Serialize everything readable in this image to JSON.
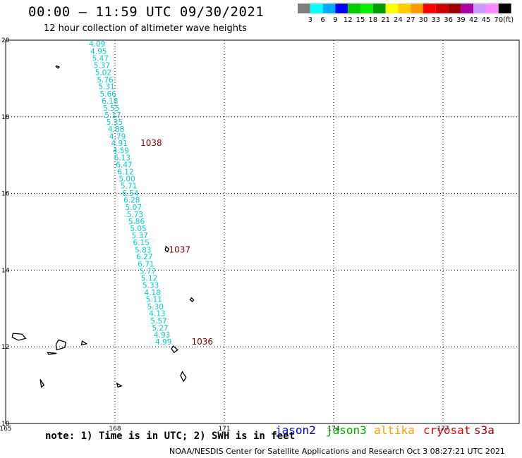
{
  "header": {
    "title": "00:00 – 11:59 UTC 09/30/2021",
    "subtitle": "12 hour collection of altimeter wave heights"
  },
  "colorbar": {
    "unit": "(ft)",
    "colors": [
      "#7f7f7f",
      "#00ffff",
      "#00aaff",
      "#0000ff",
      "#00cc00",
      "#00ee00",
      "#009900",
      "#ffff00",
      "#ffcc00",
      "#ff9900",
      "#ff0000",
      "#cc0000",
      "#990000",
      "#aa00aa",
      "#cc99ff",
      "#ff88ff",
      "#000000"
    ],
    "ticks": [
      "3",
      "6",
      "9",
      "12",
      "15",
      "18",
      "21",
      "24",
      "27",
      "30",
      "33",
      "36",
      "39",
      "42",
      "45",
      "70"
    ]
  },
  "map": {
    "lon_ticks": [
      "165",
      "168",
      "171",
      "174",
      "177"
    ],
    "lat_ticks": [
      "20",
      "18",
      "16",
      "14",
      "12",
      "10"
    ],
    "swh_color": "#00cccc",
    "pressure_color": "#7a0000",
    "swh_points": [
      {
        "lat": 19.83,
        "lon": 167.51,
        "v": "4.09"
      },
      {
        "lat": 19.64,
        "lon": 167.55,
        "v": "4.95"
      },
      {
        "lat": 19.46,
        "lon": 167.6,
        "v": "5.47"
      },
      {
        "lat": 19.27,
        "lon": 167.64,
        "v": "5.37"
      },
      {
        "lat": 19.09,
        "lon": 167.68,
        "v": "5.02"
      },
      {
        "lat": 18.9,
        "lon": 167.73,
        "v": "5.76"
      },
      {
        "lat": 18.72,
        "lon": 167.77,
        "v": "5.31"
      },
      {
        "lat": 18.53,
        "lon": 167.81,
        "v": "5.66"
      },
      {
        "lat": 18.35,
        "lon": 167.86,
        "v": "6.18"
      },
      {
        "lat": 18.16,
        "lon": 167.9,
        "v": "5.55"
      },
      {
        "lat": 17.98,
        "lon": 167.94,
        "v": "5.17"
      },
      {
        "lat": 17.79,
        "lon": 167.99,
        "v": "5.35"
      },
      {
        "lat": 17.61,
        "lon": 168.03,
        "v": "4.88"
      },
      {
        "lat": 17.42,
        "lon": 168.07,
        "v": "4.79"
      },
      {
        "lat": 17.24,
        "lon": 168.12,
        "v": "4.91"
      },
      {
        "lat": 17.05,
        "lon": 168.16,
        "v": "4.59"
      },
      {
        "lat": 16.87,
        "lon": 168.2,
        "v": "6.13"
      },
      {
        "lat": 16.68,
        "lon": 168.25,
        "v": "6.47"
      },
      {
        "lat": 16.5,
        "lon": 168.29,
        "v": "6.12"
      },
      {
        "lat": 16.31,
        "lon": 168.33,
        "v": "5.00"
      },
      {
        "lat": 16.13,
        "lon": 168.38,
        "v": "5.71"
      },
      {
        "lat": 15.94,
        "lon": 168.42,
        "v": "6.54"
      },
      {
        "lat": 15.76,
        "lon": 168.46,
        "v": "6.28"
      },
      {
        "lat": 15.57,
        "lon": 168.51,
        "v": "5.07"
      },
      {
        "lat": 15.39,
        "lon": 168.55,
        "v": "5.73"
      },
      {
        "lat": 15.2,
        "lon": 168.59,
        "v": "5.86"
      },
      {
        "lat": 15.02,
        "lon": 168.64,
        "v": "5.05"
      },
      {
        "lat": 14.83,
        "lon": 168.68,
        "v": "5.37"
      },
      {
        "lat": 14.65,
        "lon": 168.72,
        "v": "6.15"
      },
      {
        "lat": 14.46,
        "lon": 168.77,
        "v": "5.83"
      },
      {
        "lat": 14.28,
        "lon": 168.81,
        "v": "6.27"
      },
      {
        "lat": 14.09,
        "lon": 168.85,
        "v": "6.71"
      },
      {
        "lat": 13.91,
        "lon": 168.9,
        "v": "5.77"
      },
      {
        "lat": 13.72,
        "lon": 168.94,
        "v": "5.12"
      },
      {
        "lat": 13.54,
        "lon": 168.98,
        "v": "5.33"
      },
      {
        "lat": 13.35,
        "lon": 169.03,
        "v": "4.18"
      },
      {
        "lat": 13.17,
        "lon": 169.07,
        "v": "5.11"
      },
      {
        "lat": 12.98,
        "lon": 169.11,
        "v": "5.30"
      },
      {
        "lat": 12.8,
        "lon": 169.16,
        "v": "4.13"
      },
      {
        "lat": 12.61,
        "lon": 169.2,
        "v": "5.57"
      },
      {
        "lat": 12.43,
        "lon": 169.24,
        "v": "5.27"
      },
      {
        "lat": 12.24,
        "lon": 169.29,
        "v": "4.93"
      },
      {
        "lat": 12.06,
        "lon": 169.33,
        "v": "4.99"
      }
    ],
    "pressure_labels": [
      {
        "lat": 17.24,
        "lon": 168.7,
        "v": "1038"
      },
      {
        "lat": 14.46,
        "lon": 169.48,
        "v": "1037"
      },
      {
        "lat": 12.06,
        "lon": 170.1,
        "v": "1036"
      }
    ],
    "islands": [
      [
        [
          19.33,
          166.4
        ],
        [
          19.3,
          166.47
        ],
        [
          19.27,
          166.44
        ],
        [
          19.31,
          166.38
        ]
      ],
      [
        [
          14.62,
          169.4
        ],
        [
          14.55,
          169.48
        ],
        [
          14.48,
          169.44
        ],
        [
          14.52,
          169.38
        ]
      ],
      [
        [
          13.28,
          170.1
        ],
        [
          13.22,
          170.16
        ],
        [
          13.18,
          170.12
        ],
        [
          13.23,
          170.06
        ]
      ],
      [
        [
          12.35,
          165.2
        ],
        [
          12.33,
          165.45
        ],
        [
          12.22,
          165.55
        ],
        [
          12.17,
          165.35
        ],
        [
          12.25,
          165.18
        ]
      ],
      [
        [
          12.18,
          166.45
        ],
        [
          12.12,
          166.65
        ],
        [
          11.98,
          166.62
        ],
        [
          11.92,
          166.4
        ],
        [
          12.05,
          166.38
        ]
      ],
      [
        [
          12.15,
          167.1
        ],
        [
          12.08,
          167.22
        ],
        [
          12.05,
          167.08
        ]
      ],
      [
        [
          11.85,
          166.15
        ],
        [
          11.83,
          166.4
        ],
        [
          11.8,
          166.18
        ]
      ],
      [
        [
          12.02,
          169.6
        ],
        [
          11.92,
          169.72
        ],
        [
          11.85,
          169.62
        ],
        [
          11.95,
          169.55
        ]
      ],
      [
        [
          11.35,
          169.85
        ],
        [
          11.2,
          169.95
        ],
        [
          11.1,
          169.88
        ],
        [
          11.25,
          169.8
        ]
      ],
      [
        [
          11.15,
          165.95
        ],
        [
          11.0,
          166.05
        ],
        [
          10.95,
          165.98
        ]
      ],
      [
        [
          11.05,
          168.05
        ],
        [
          10.98,
          168.18
        ],
        [
          10.95,
          168.08
        ]
      ]
    ]
  },
  "footer": {
    "note": "note:  1) Time is in UTC;  2) SWH is in feet",
    "credit": "NOAA/NESDIS Center for Satellite Applications and Research    Oct  3 08:27:21 UTC 2021",
    "satellites": [
      {
        "name": "jason2",
        "color": "#0000cc"
      },
      {
        "name": "jason3",
        "color": "#00aa00"
      },
      {
        "name": "altika",
        "color": "#ff9900"
      },
      {
        "name": "cryosat",
        "color": "#dd0000"
      },
      {
        "name": "s3a",
        "color": "#990000"
      }
    ]
  }
}
